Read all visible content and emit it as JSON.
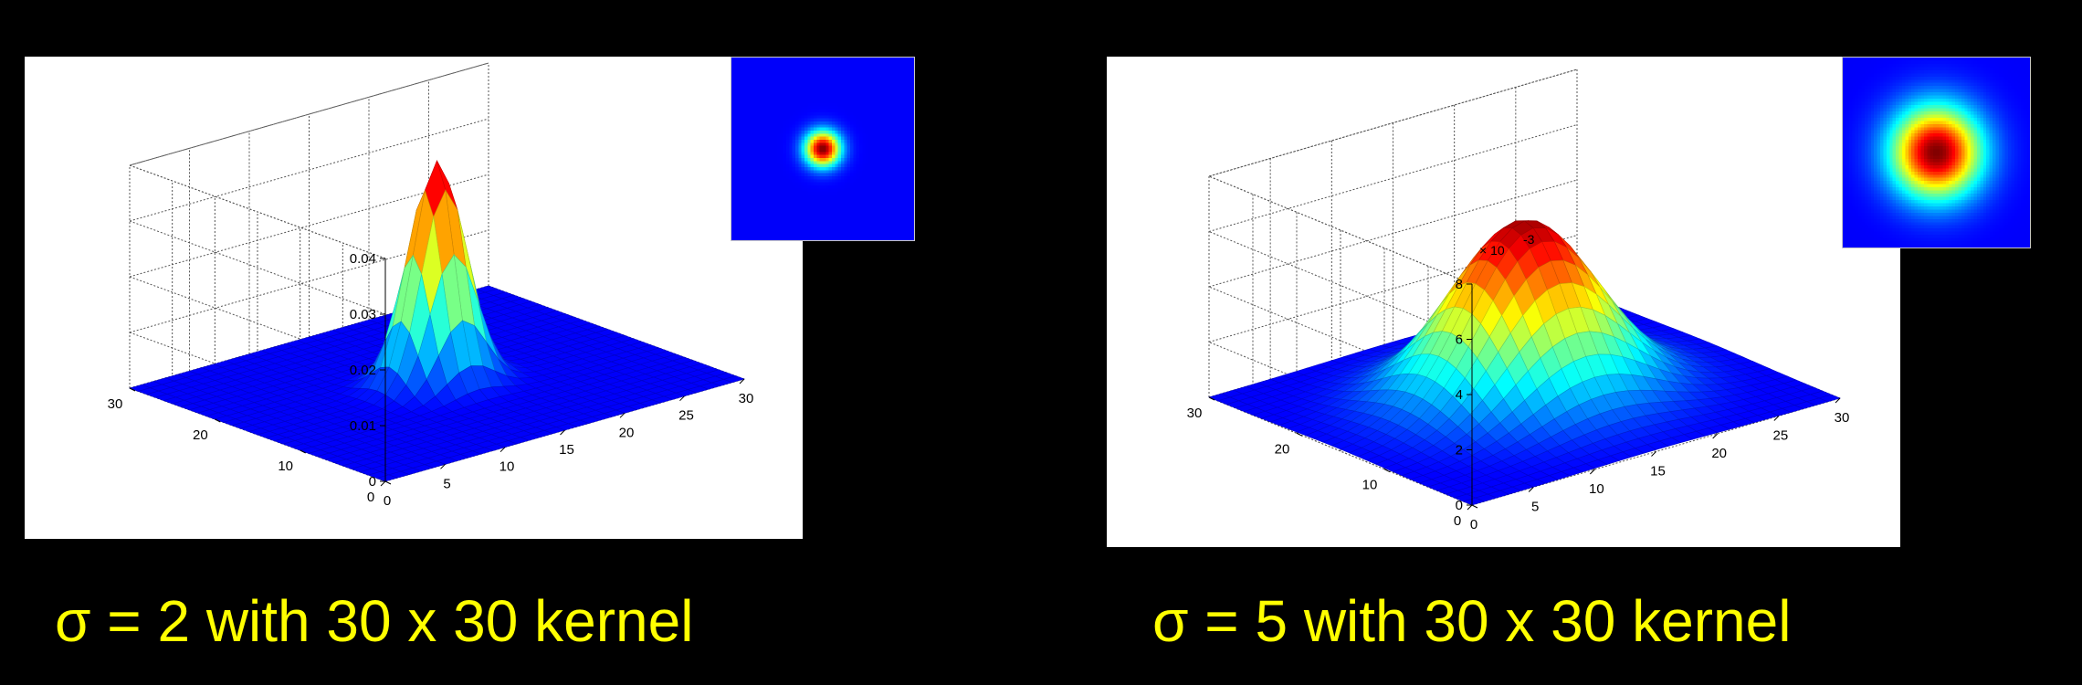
{
  "chart_data": [
    {
      "type": "surface",
      "sigma": 2,
      "kernel_size": 30,
      "surface": "Gaussian kernel, peak at center (15,15)",
      "peak_value": 0.04,
      "x": {
        "range": [
          0,
          30
        ],
        "ticks": [
          "0",
          "5",
          "10",
          "15",
          "20",
          "25",
          "30"
        ]
      },
      "y": {
        "range": [
          0,
          30
        ],
        "ticks": [
          "0",
          "10",
          "20",
          "30"
        ]
      },
      "z": {
        "range": [
          0,
          0.04
        ],
        "ticks": [
          "0",
          "0.01",
          "0.02",
          "0.03",
          "0.04"
        ],
        "multiplier": ""
      },
      "colormap": "jet",
      "grid": true,
      "inset": "top-down heatmap of kernel",
      "caption": "σ = 2 with 30 x 30 kernel"
    },
    {
      "type": "surface",
      "sigma": 5,
      "kernel_size": 30,
      "surface": "Gaussian kernel, peak at center (15,15)",
      "peak_value": 0.0064,
      "x": {
        "range": [
          0,
          30
        ],
        "ticks": [
          "0",
          "5",
          "10",
          "15",
          "20",
          "25",
          "30"
        ]
      },
      "y": {
        "range": [
          0,
          30
        ],
        "ticks": [
          "0",
          "10",
          "20",
          "30"
        ]
      },
      "z": {
        "range": [
          0,
          8
        ],
        "ticks": [
          "0",
          "2",
          "4",
          "6",
          "8"
        ],
        "multiplier": "× 10",
        "multiplier_exp": "-3"
      },
      "colormap": "jet",
      "grid": true,
      "inset": "top-down heatmap of kernel",
      "caption": "σ = 5 with 30 x 30 kernel"
    }
  ]
}
